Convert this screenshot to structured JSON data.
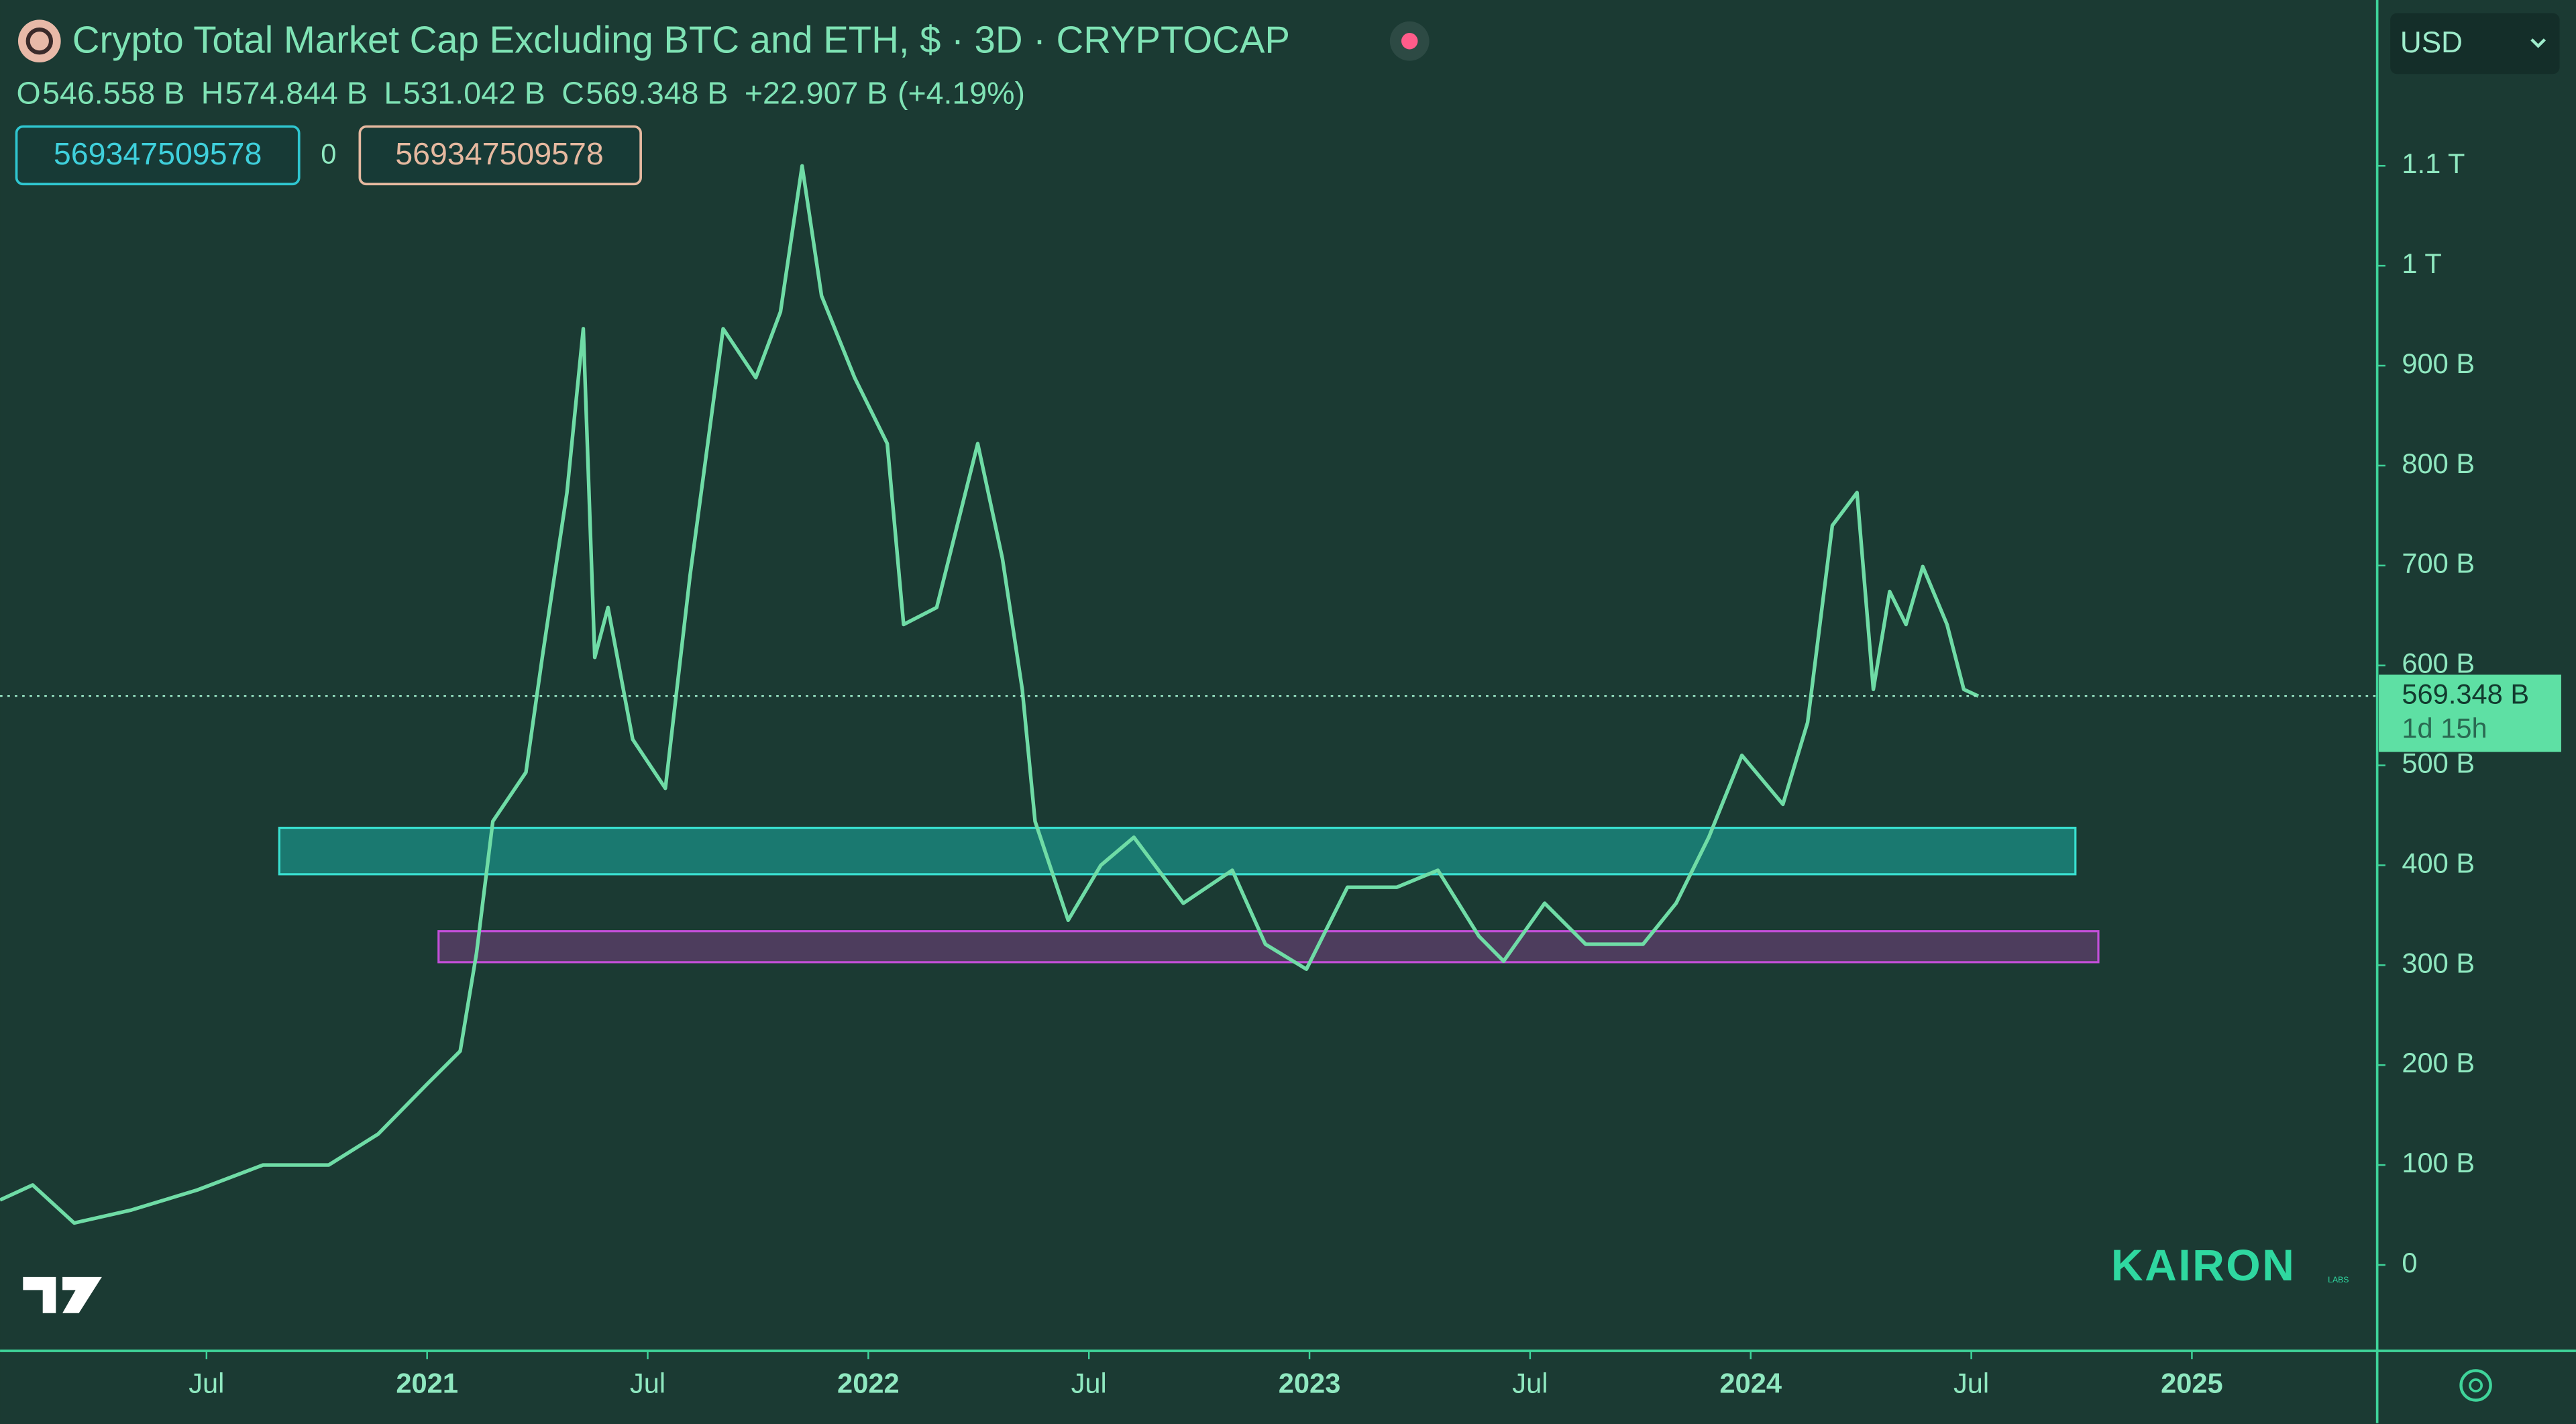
{
  "chart_data": {
    "type": "line",
    "title": "Crypto Total Market Cap Excluding BTC and ETH, $ · 3D · CRYPTOCAP",
    "ohlc": [
      {
        "label": "O",
        "value": "546.558 B"
      },
      {
        "label": "H",
        "value": "574.844 B"
      },
      {
        "label": "L",
        "value": "531.042 B"
      },
      {
        "label": "C",
        "value": "569.348 B"
      }
    ],
    "change": "+22.907 B",
    "change_pct": "(+4.19%)",
    "inputs": [
      "569347509578",
      "0",
      "569347509578"
    ],
    "currency": "USD",
    "price_line": 569.348,
    "price_label": "569.348 B",
    "countdown": "1d 15h",
    "watermark": "KAIRON",
    "watermark_sub": "LABS",
    "x": [
      2020.032,
      2020.106,
      2020.2,
      2020.33,
      2020.479,
      2020.628,
      2020.777,
      2020.889,
      2021.0,
      2021.075,
      2021.112,
      2021.149,
      2021.224,
      2021.261,
      2021.317,
      2021.354,
      2021.38,
      2021.41,
      2021.466,
      2021.54,
      2021.596,
      2021.671,
      2021.745,
      2021.801,
      2021.85,
      2021.894,
      2021.969,
      2022.043,
      2022.08,
      2022.155,
      2022.248,
      2022.304,
      2022.349,
      2022.378,
      2022.453,
      2022.527,
      2022.602,
      2022.714,
      2022.825,
      2022.9,
      2022.993,
      2023.086,
      2023.198,
      2023.291,
      2023.384,
      2023.44,
      2023.533,
      2023.626,
      2023.756,
      2023.831,
      2023.905,
      2023.98,
      2024.073,
      2024.129,
      2024.185,
      2024.241,
      2024.278,
      2024.315,
      2024.352,
      2024.39,
      2024.445,
      2024.483,
      2024.516
    ],
    "series": [
      {
        "name": "CRYPTOCAP",
        "color": "#6fdca6",
        "values": [
          65,
          80,
          42,
          55,
          75,
          100,
          100,
          131,
          181,
          214,
          312,
          444,
          493,
          608,
          773,
          937,
          608,
          658,
          526,
          477,
          690,
          937,
          888,
          954,
          1100,
          970,
          888,
          822,
          641,
          658,
          822,
          707,
          576,
          444,
          345,
          400,
          428,
          362,
          395,
          321,
          296,
          378,
          378,
          395,
          329,
          304,
          362,
          321,
          321,
          362,
          428,
          510,
          461,
          543,
          740,
          773,
          576,
          674,
          641,
          699,
          641,
          576,
          569.348
        ]
      }
    ],
    "zones": [
      {
        "x0": 2020.665,
        "x1": 2024.736,
        "y0": 391,
        "y1": 437.5,
        "color": "#1a8a80"
      },
      {
        "x0": 2021.026,
        "x1": 2024.788,
        "y0": 303,
        "y1": 334,
        "color": "#5a3f68"
      }
    ],
    "xlim": [
      2020.032,
      2025.42
    ],
    "ylim": [
      -86,
      1266
    ],
    "xticks": [
      {
        "value": 2020.5,
        "label": "Jul"
      },
      {
        "value": 2021,
        "label": "2021"
      },
      {
        "value": 2021.5,
        "label": "Jul"
      },
      {
        "value": 2022,
        "label": "2022"
      },
      {
        "value": 2022.5,
        "label": "Jul"
      },
      {
        "value": 2023,
        "label": "2023"
      },
      {
        "value": 2023.5,
        "label": "Jul"
      },
      {
        "value": 2024,
        "label": "2024"
      },
      {
        "value": 2024.5,
        "label": "Jul"
      },
      {
        "value": 2025,
        "label": "2025"
      }
    ],
    "yticks": [
      0,
      {
        "value": 100,
        "label": "100 B"
      },
      {
        "value": 200,
        "label": "200 B"
      },
      {
        "value": 300,
        "label": "300 B"
      },
      {
        "value": 400,
        "label": "400 B"
      },
      {
        "value": 500,
        "label": "500 B"
      },
      {
        "value": 600,
        "label": "600 B"
      },
      {
        "value": 700,
        "label": "700 B"
      },
      {
        "value": 800,
        "label": "800 B"
      },
      {
        "value": 900,
        "label": "900 B"
      },
      {
        "value": 1000,
        "label": "1 T"
      },
      {
        "value": 1100,
        "label": "1.1 T"
      }
    ]
  }
}
